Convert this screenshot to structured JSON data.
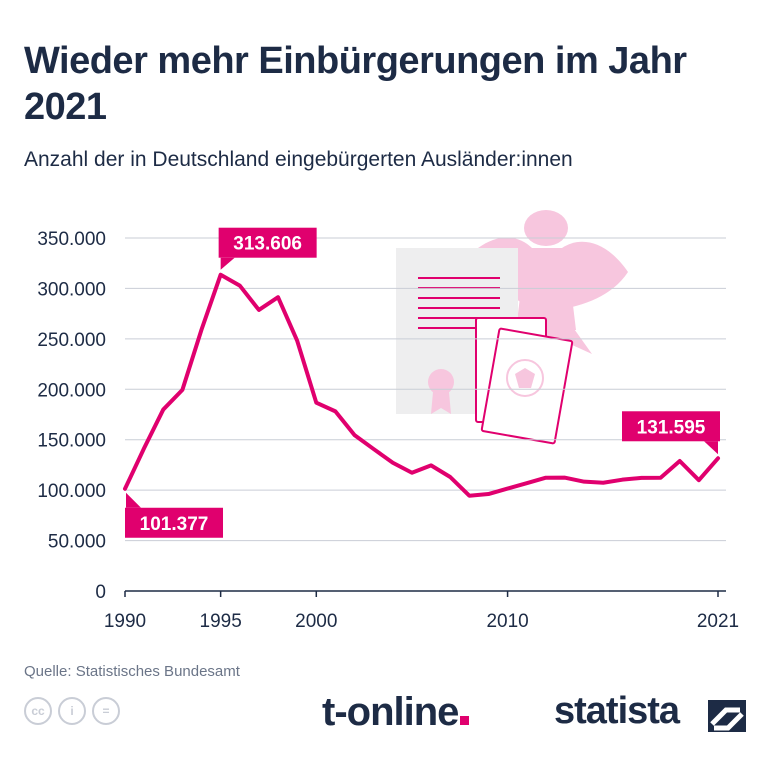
{
  "title": "Wieder mehr Einbürgerungen im Jahr 2021",
  "subtitle": "Anzahl der in Deutschland eingebürgerten Ausländer:innen",
  "source": "Quelle: Statistisches Bundesamt",
  "brands": {
    "t_online": "t-online",
    "statista": "statista"
  },
  "icons": [
    "cc-icon",
    "person-icon",
    "equals-icon",
    "eagle-icon",
    "certificate-icon",
    "passport-icon"
  ],
  "colors": {
    "line": "#e0006e",
    "text": "#1d2b45",
    "grid": "#c9cdd6",
    "illustration": "#f7c6de"
  },
  "chart_data": {
    "type": "line",
    "title": "Wieder mehr Einbürgerungen im Jahr 2021",
    "xlabel": "",
    "ylabel": "",
    "xlim": [
      1990,
      2021
    ],
    "ylim": [
      0,
      350000
    ],
    "y_ticks": [
      0,
      50000,
      100000,
      150000,
      200000,
      250000,
      300000,
      350000
    ],
    "y_tick_labels": [
      "0",
      "50.000",
      "100.000",
      "150.000",
      "200.000",
      "250.000",
      "300.000",
      "350.000"
    ],
    "x_ticks": [
      1990,
      1995,
      2000,
      2010,
      2021
    ],
    "x_tick_labels": [
      "1990",
      "1995",
      "2000",
      "2010",
      "2021"
    ],
    "grid": true,
    "series": [
      {
        "x": [
          1990,
          1991,
          1992,
          1993,
          1994,
          1995,
          1996,
          1997,
          1998,
          1999,
          2000,
          2001,
          2002,
          2003,
          2004,
          2005,
          2006,
          2007,
          2008,
          2009,
          2010,
          2011,
          2012,
          2013,
          2014,
          2015,
          2016,
          2017,
          2018,
          2019,
          2020,
          2021
        ],
        "values": [
          101377,
          141630,
          179904,
          199443,
          259170,
          313606,
          302830,
          278662,
          291331,
          248206,
          186688,
          178098,
          154547,
          140731,
          127153,
          117241,
          124566,
          113030,
          94470,
          96122,
          101570,
          106897,
          112348,
          112353,
          108422,
          107317,
          110383,
          112211,
          112340,
          128905,
          109880,
          131595
        ]
      }
    ],
    "annotations": [
      {
        "x": 1990,
        "y": 101377,
        "label": "101.377"
      },
      {
        "x": 1995,
        "y": 313606,
        "label": "313.606"
      },
      {
        "x": 2021,
        "y": 131595,
        "label": "131.595"
      }
    ]
  }
}
